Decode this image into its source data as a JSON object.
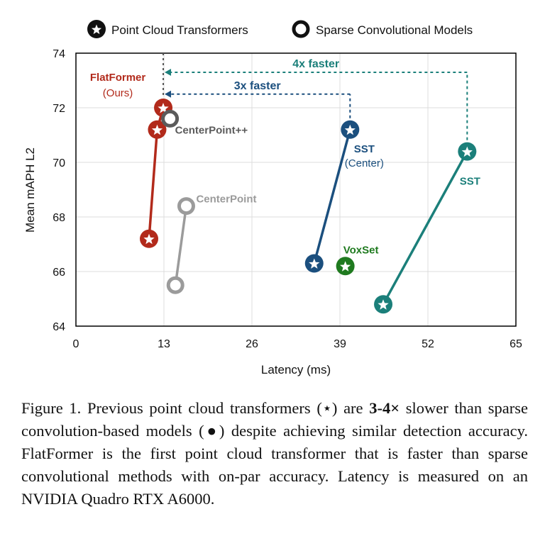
{
  "legend": {
    "transformers": "Point Cloud Transformers",
    "sparse": "Sparse Convolutional Models"
  },
  "colors": {
    "flatformer": "#b22a1b",
    "centerpoint_pp": "#5b5b5b",
    "centerpoint": "#9b9b9b",
    "sst_center": "#1b4f7e",
    "sst": "#1b7f7a",
    "voxset": "#1f7a1f",
    "arrow_3x": "#1b4f7e",
    "arrow_4x": "#1b7f7a"
  },
  "chart_data": {
    "type": "scatter",
    "xlabel": "Latency (ms)",
    "ylabel": "Mean mAPH L2",
    "xlim": [
      0,
      65
    ],
    "ylim": [
      64,
      74
    ],
    "xticks": [
      "0",
      "13",
      "26",
      "39",
      "52",
      "65"
    ],
    "yticks": [
      "64",
      "66",
      "68",
      "70",
      "72",
      "74"
    ],
    "grid": true,
    "legend_position": "top",
    "series": [
      {
        "name": "FlatFormer",
        "sublabel": "(Ours)",
        "marker": "star",
        "color_key": "flatformer",
        "points": [
          {
            "x": 10.8,
            "y": 67.2
          },
          {
            "x": 12.0,
            "y": 71.2
          },
          {
            "x": 12.9,
            "y": 72.0
          }
        ]
      },
      {
        "name": "CenterPoint++",
        "marker": "circle",
        "color_key": "centerpoint_pp",
        "points": [
          {
            "x": 13.9,
            "y": 71.6
          }
        ]
      },
      {
        "name": "CenterPoint",
        "marker": "circle",
        "color_key": "centerpoint",
        "points": [
          {
            "x": 14.7,
            "y": 65.5
          },
          {
            "x": 16.3,
            "y": 68.4
          }
        ]
      },
      {
        "name": "SST",
        "sublabel": "(Center)",
        "marker": "star",
        "color_key": "sst_center",
        "points": [
          {
            "x": 35.2,
            "y": 66.3
          },
          {
            "x": 40.5,
            "y": 71.2
          }
        ]
      },
      {
        "name": "VoxSet",
        "marker": "star",
        "color_key": "voxset",
        "points": [
          {
            "x": 39.8,
            "y": 66.2
          }
        ]
      },
      {
        "name": "SST",
        "marker": "star",
        "color_key": "sst",
        "points": [
          {
            "x": 45.4,
            "y": 64.8
          },
          {
            "x": 57.8,
            "y": 70.4
          }
        ]
      }
    ],
    "annotations": [
      {
        "text": "3x faster",
        "color_key": "arrow_3x",
        "x_from": 40.5,
        "x_to": 12.9,
        "y": 72.5,
        "y_from": 71.2
      },
      {
        "text": "4x faster",
        "color_key": "arrow_4x",
        "x_from": 57.8,
        "x_to": 12.9,
        "y": 73.3,
        "y_from": 70.4
      }
    ],
    "reference_x": 12.9
  },
  "caption": {
    "prefix": "Figure 1. Previous point cloud transformers (⋆) are ",
    "bold": "3-4×",
    "suffix": " slower than sparse convolution-based models (●) despite achieving similar detection accuracy. FlatFormer is the first point cloud transformer that is faster than sparse convolutional methods with on-par accuracy. Latency is measured on an NVIDIA Quadro RTX A6000."
  }
}
